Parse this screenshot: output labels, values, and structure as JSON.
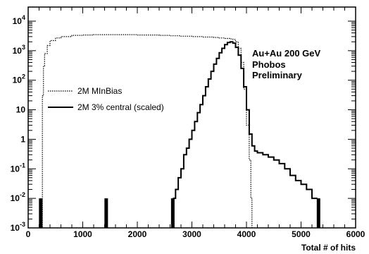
{
  "chart_data": {
    "type": "line",
    "xlabel": "Total # of hits",
    "ylabel": "",
    "xlim": [
      0,
      6000
    ],
    "ylim": [
      0.001,
      30000
    ],
    "yscale": "log",
    "x_ticks": [
      0,
      1000,
      2000,
      3000,
      4000,
      5000,
      6000
    ],
    "y_ticks": [
      {
        "value": 0.001,
        "base": "10",
        "exp": "-3",
        "text": ""
      },
      {
        "value": 0.01,
        "base": "10",
        "exp": "-2",
        "text": ""
      },
      {
        "value": 0.1,
        "base": "10",
        "exp": "-1",
        "text": ""
      },
      {
        "value": 1,
        "base": "",
        "exp": "",
        "text": "1"
      },
      {
        "value": 10,
        "base": "",
        "exp": "",
        "text": "10"
      },
      {
        "value": 100,
        "base": "10",
        "exp": "2",
        "text": ""
      },
      {
        "value": 1000,
        "base": "10",
        "exp": "3",
        "text": ""
      },
      {
        "value": 10000,
        "base": "10",
        "exp": "4",
        "text": ""
      }
    ],
    "annotation": [
      "Au+Au 200 GeV",
      "Phobos",
      "Preliminary"
    ],
    "legend_position": "left",
    "series": [
      {
        "name": "2M MInBias",
        "style": "dotted",
        "color": "#000000",
        "x": [
          200,
          250,
          260,
          280,
          300,
          350,
          400,
          500,
          600,
          800,
          1000,
          1200,
          1400,
          1600,
          1800,
          2000,
          2200,
          2400,
          2600,
          2800,
          3000,
          3200,
          3400,
          3500,
          3600,
          3700,
          3750,
          3800,
          3850,
          3900,
          3950,
          4000,
          4050,
          4080,
          4100
        ],
        "values": [
          0.001,
          0.001,
          30,
          300,
          800,
          1500,
          2200,
          2700,
          3000,
          3300,
          3400,
          3500,
          3500,
          3500,
          3500,
          3400,
          3400,
          3300,
          3200,
          3100,
          3000,
          2900,
          2800,
          2700,
          2600,
          2500,
          2400,
          2000,
          1200,
          400,
          50,
          3,
          0.2,
          0.01,
          0.001
        ]
      },
      {
        "name": "2M 3% central (scaled)",
        "style": "solid",
        "color": "#000000",
        "x": [
          2650,
          2700,
          2750,
          2800,
          2850,
          2900,
          2950,
          3000,
          3050,
          3100,
          3150,
          3200,
          3250,
          3300,
          3350,
          3400,
          3450,
          3500,
          3550,
          3600,
          3650,
          3700,
          3750,
          3800,
          3850,
          3900,
          3950,
          4000,
          4050,
          4100,
          4150,
          4200,
          4300,
          4400,
          4500,
          4600,
          4700,
          4800,
          4900,
          5000,
          5100,
          5200,
          5300
        ],
        "values": [
          0.01,
          0.02,
          0.05,
          0.1,
          0.3,
          0.5,
          1,
          2,
          4,
          8,
          15,
          30,
          60,
          110,
          200,
          350,
          550,
          850,
          1200,
          1600,
          1900,
          2000,
          1800,
          1300,
          700,
          250,
          60,
          10,
          1.5,
          0.6,
          0.4,
          0.35,
          0.3,
          0.25,
          0.2,
          0.15,
          0.1,
          0.06,
          0.04,
          0.03,
          0.02,
          0.01,
          0.01
        ]
      }
    ],
    "spikes": [
      {
        "x": 230,
        "value": 0.01
      },
      {
        "x": 1430,
        "value": 0.01
      },
      {
        "x": 2650,
        "value": 0.01
      },
      {
        "x": 5320,
        "value": 0.01
      }
    ]
  }
}
